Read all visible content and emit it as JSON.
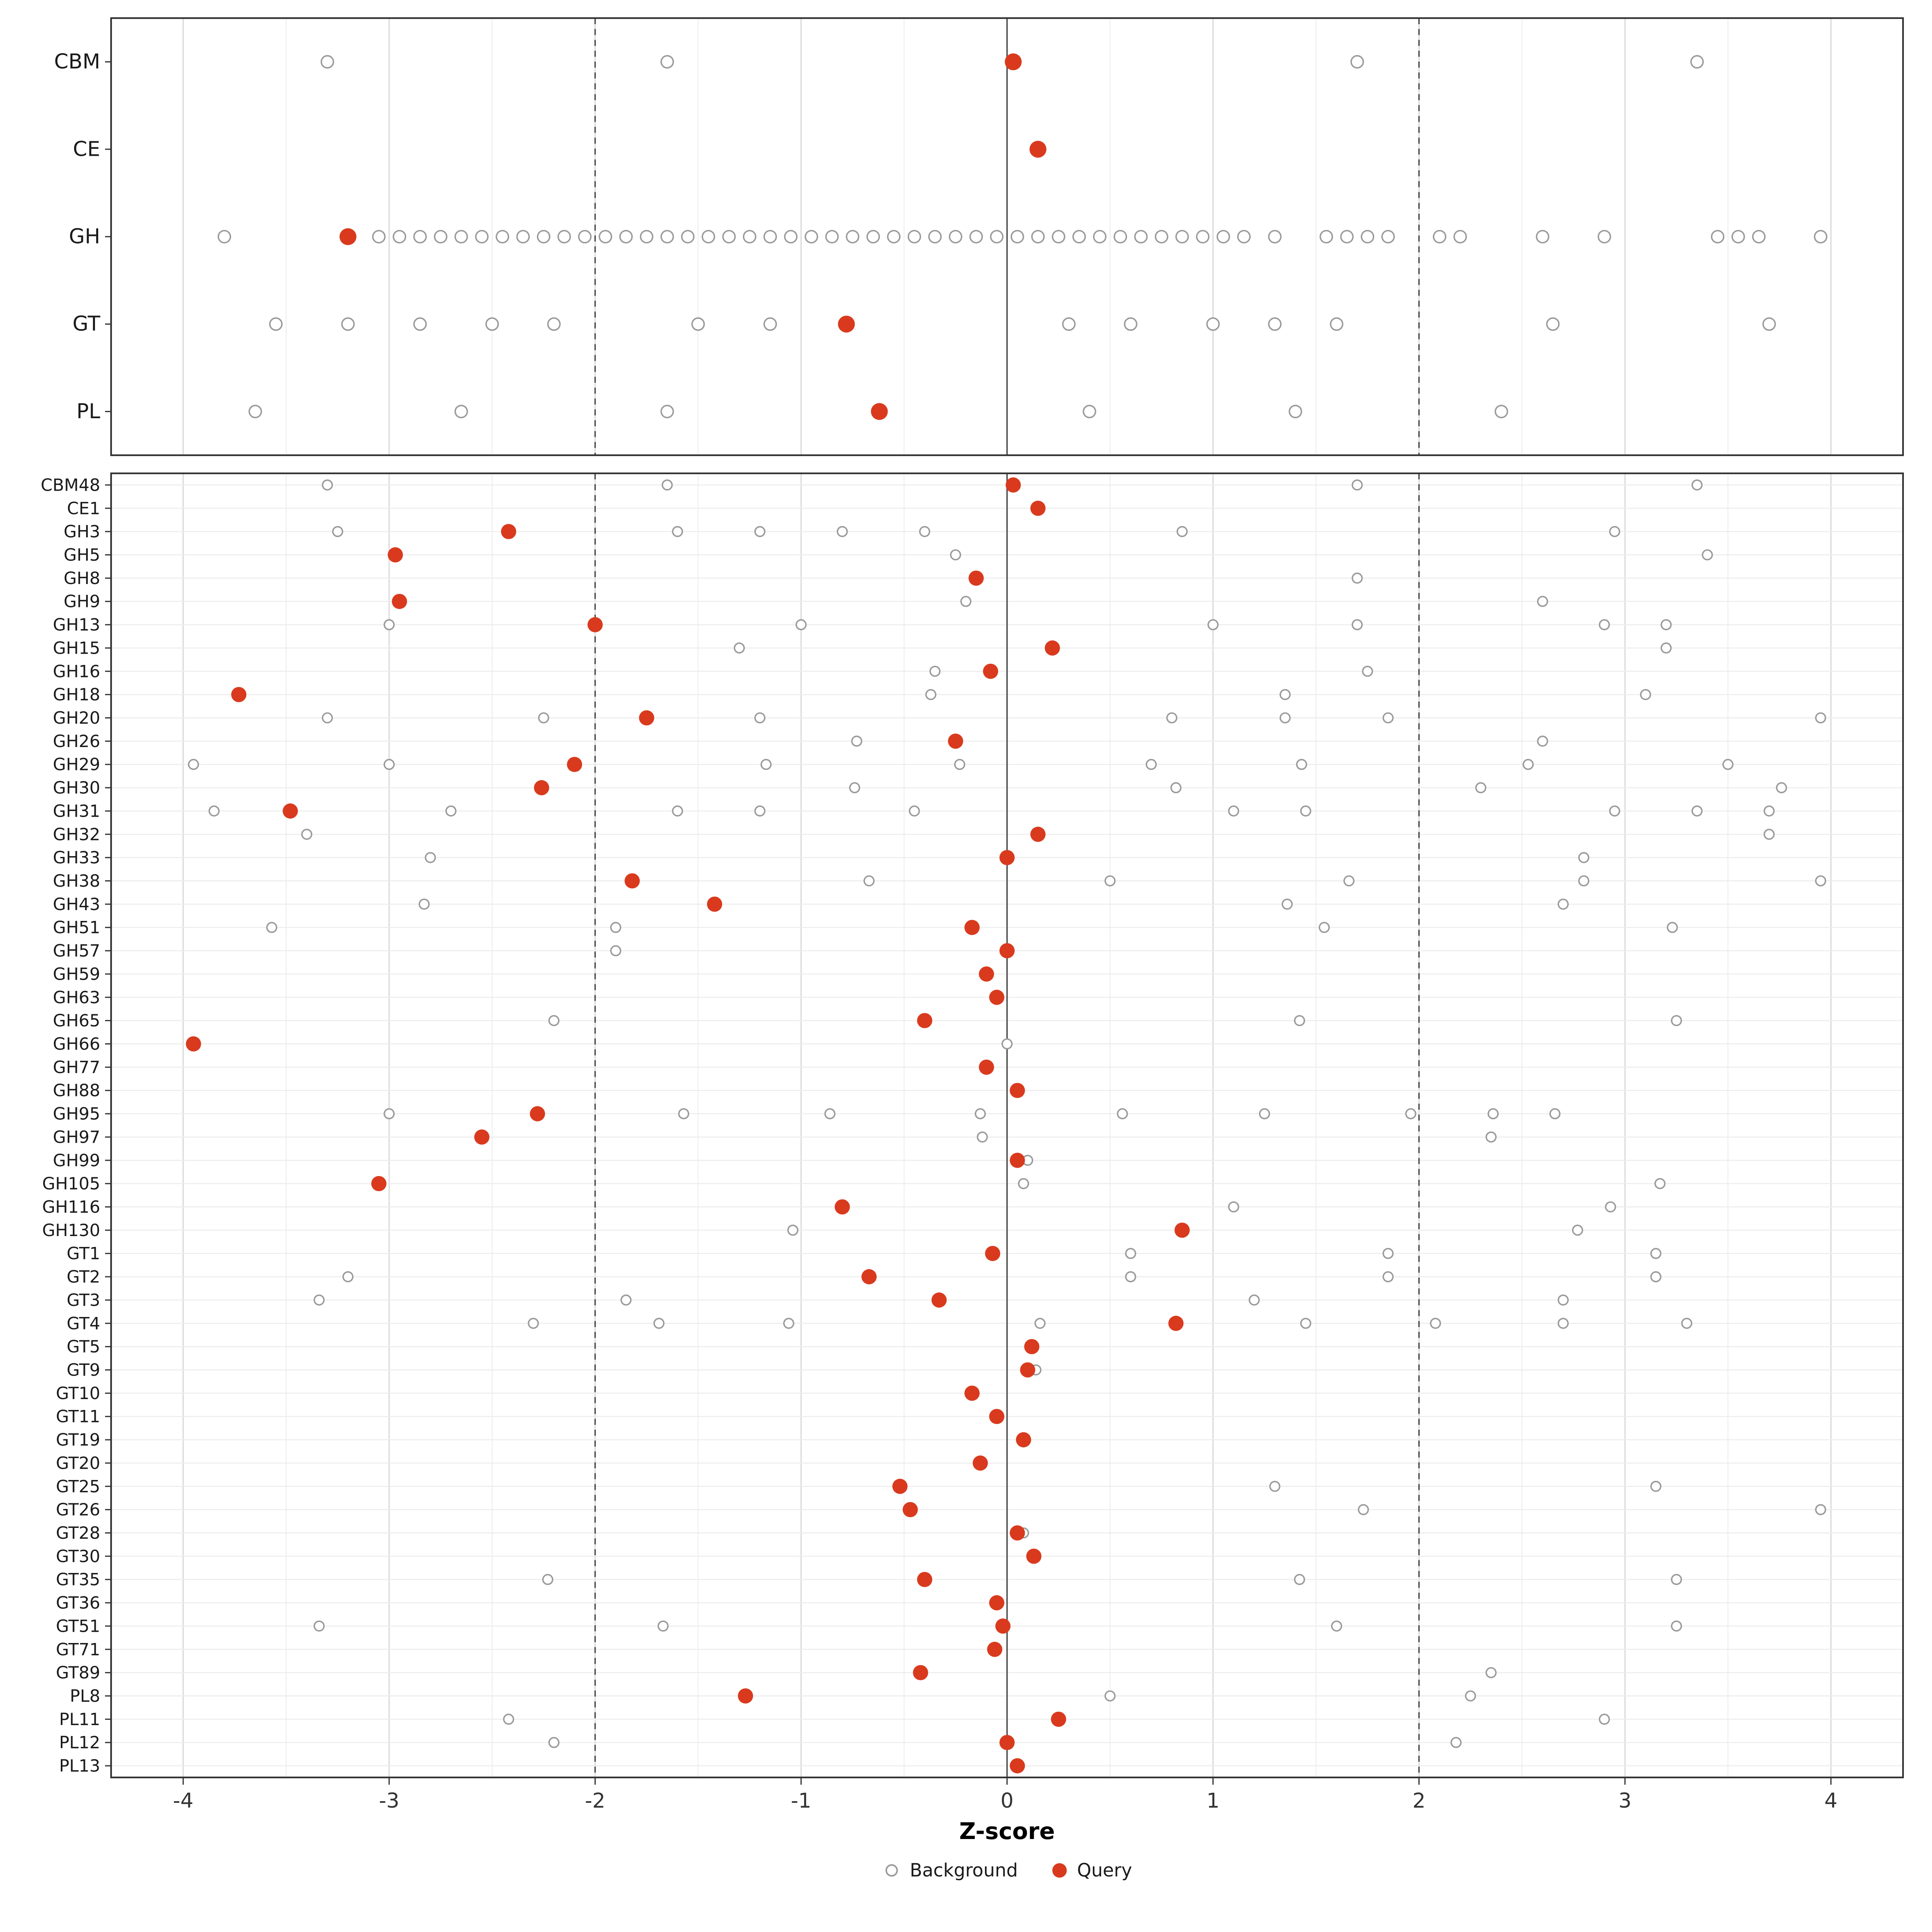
{
  "chart_data": {
    "type": "scatter",
    "title": "",
    "xlabel": "Z-score",
    "xlim": [
      -4.35,
      4.35
    ],
    "x_ticks": [
      -4,
      -3,
      -2,
      -1,
      0,
      1,
      2,
      3,
      4
    ],
    "reference_lines": {
      "solid": [
        0
      ],
      "dashed": [
        -2,
        2
      ]
    },
    "legend": [
      {
        "label": "Background",
        "type": "open"
      },
      {
        "label": "Query",
        "type": "filled"
      }
    ],
    "colors": {
      "background_stroke": "#9a9a9a",
      "query_fill": "#d93a1e",
      "panel_border": "#333333",
      "grid_major": "#dcdcdc",
      "grid_minor": "#efefef",
      "row_grid": "#ececec",
      "ref_line": "#444444"
    },
    "panels": [
      {
        "name": "family_summary",
        "rows": [
          {
            "label": "CBM",
            "query": 0.03,
            "background": [
              -3.3,
              -1.65,
              1.7,
              3.35
            ]
          },
          {
            "label": "CE",
            "query": 0.15,
            "background": []
          },
          {
            "label": "GH",
            "query": -3.2,
            "background": [
              -3.8,
              -3.05,
              -2.95,
              -2.85,
              -2.75,
              -2.65,
              -2.55,
              -2.45,
              -2.35,
              -2.25,
              -2.15,
              -2.05,
              -1.95,
              -1.85,
              -1.75,
              -1.65,
              -1.55,
              -1.45,
              -1.35,
              -1.25,
              -1.15,
              -1.05,
              -0.95,
              -0.85,
              -0.75,
              -0.65,
              -0.55,
              -0.45,
              -0.35,
              -0.25,
              -0.15,
              -0.05,
              0.05,
              0.15,
              0.25,
              0.35,
              0.45,
              0.55,
              0.65,
              0.75,
              0.85,
              0.95,
              1.05,
              1.15,
              1.3,
              1.55,
              1.65,
              1.75,
              1.85,
              2.1,
              2.2,
              2.6,
              2.9,
              3.45,
              3.55,
              3.65,
              3.95
            ]
          },
          {
            "label": "GT",
            "query": -0.78,
            "background": [
              -3.55,
              -3.2,
              -2.85,
              -2.5,
              -2.2,
              -1.5,
              -1.15,
              0.3,
              0.6,
              1.0,
              1.3,
              1.6,
              2.65,
              3.7
            ]
          },
          {
            "label": "PL",
            "query": -0.62,
            "background": [
              -3.65,
              -2.65,
              -1.65,
              0.4,
              1.4,
              2.4
            ]
          }
        ]
      },
      {
        "name": "subfamily_detail",
        "rows": [
          {
            "label": "CBM48",
            "query": 0.03,
            "background": [
              -3.3,
              -1.65,
              1.7,
              3.35
            ]
          },
          {
            "label": "CE1",
            "query": 0.15,
            "background": []
          },
          {
            "label": "GH3",
            "query": -2.42,
            "background": [
              -3.25,
              -1.6,
              -1.2,
              -0.8,
              -0.4,
              0.85,
              2.95
            ]
          },
          {
            "label": "GH5",
            "query": -2.97,
            "background": [
              -0.25,
              3.4
            ]
          },
          {
            "label": "GH8",
            "query": -0.15,
            "background": [
              1.7
            ]
          },
          {
            "label": "GH9",
            "query": -2.95,
            "background": [
              -0.2,
              2.6
            ]
          },
          {
            "label": "GH13",
            "query": -2.0,
            "background": [
              -3.0,
              -1.0,
              1.0,
              1.7,
              2.9,
              3.2
            ]
          },
          {
            "label": "GH15",
            "query": 0.22,
            "background": [
              -1.3,
              3.2
            ]
          },
          {
            "label": "GH16",
            "query": -0.08,
            "background": [
              -0.35,
              1.75
            ]
          },
          {
            "label": "GH18",
            "query": -3.73,
            "background": [
              -0.37,
              1.35,
              3.1
            ]
          },
          {
            "label": "GH20",
            "query": -1.75,
            "background": [
              -3.3,
              -2.25,
              -1.2,
              0.8,
              1.35,
              1.85,
              3.95
            ]
          },
          {
            "label": "GH26",
            "query": -0.25,
            "background": [
              -0.73,
              2.6
            ]
          },
          {
            "label": "GH29",
            "query": -2.1,
            "background": [
              -3.95,
              -3.0,
              -1.17,
              -0.23,
              0.7,
              1.43,
              2.53,
              3.5
            ]
          },
          {
            "label": "GH30",
            "query": -2.26,
            "background": [
              -0.74,
              0.82,
              2.3,
              3.76
            ]
          },
          {
            "label": "GH31",
            "query": -3.48,
            "background": [
              -3.85,
              -2.7,
              -1.6,
              -1.2,
              -0.45,
              1.1,
              1.45,
              2.95,
              3.35,
              3.7
            ]
          },
          {
            "label": "GH32",
            "query": 0.15,
            "background": [
              -3.4,
              3.7
            ]
          },
          {
            "label": "GH33",
            "query": 0.0,
            "background": [
              -2.8,
              2.8
            ]
          },
          {
            "label": "GH38",
            "query": -1.82,
            "background": [
              -0.67,
              0.5,
              1.66,
              2.8,
              3.95
            ]
          },
          {
            "label": "GH43",
            "query": -1.42,
            "background": [
              -2.83,
              1.36,
              2.7
            ]
          },
          {
            "label": "GH51",
            "query": -0.17,
            "background": [
              -3.57,
              -1.9,
              1.54,
              3.23
            ]
          },
          {
            "label": "GH57",
            "query": 0.0,
            "background": [
              -1.9
            ]
          },
          {
            "label": "GH59",
            "query": -0.1,
            "background": []
          },
          {
            "label": "GH63",
            "query": -0.05,
            "background": []
          },
          {
            "label": "GH65",
            "query": -0.4,
            "background": [
              -2.2,
              1.42,
              3.25
            ]
          },
          {
            "label": "GH66",
            "query": -3.95,
            "background": [
              0.0
            ]
          },
          {
            "label": "GH77",
            "query": -0.1,
            "background": []
          },
          {
            "label": "GH88",
            "query": 0.05,
            "background": []
          },
          {
            "label": "GH95",
            "query": -2.28,
            "background": [
              -3.0,
              -1.57,
              -0.86,
              -0.13,
              0.56,
              1.25,
              1.96,
              2.36,
              2.66
            ]
          },
          {
            "label": "GH97",
            "query": -2.55,
            "background": [
              -0.12,
              2.35
            ]
          },
          {
            "label": "GH99",
            "query": 0.05,
            "background": [
              0.1
            ]
          },
          {
            "label": "GH105",
            "query": -3.05,
            "background": [
              0.08,
              3.17
            ]
          },
          {
            "label": "GH116",
            "query": -0.8,
            "background": [
              1.1,
              2.93
            ]
          },
          {
            "label": "GH130",
            "query": 0.85,
            "background": [
              -1.04,
              2.77
            ]
          },
          {
            "label": "GT1",
            "query": -0.07,
            "background": [
              0.6,
              1.85,
              3.15
            ]
          },
          {
            "label": "GT2",
            "query": -0.67,
            "background": [
              -3.2,
              0.6,
              1.85,
              3.15
            ]
          },
          {
            "label": "GT3",
            "query": -0.33,
            "background": [
              -3.34,
              -1.85,
              1.2,
              2.7
            ]
          },
          {
            "label": "GT4",
            "query": 0.82,
            "background": [
              -2.3,
              -1.69,
              -1.06,
              0.16,
              1.45,
              2.08,
              2.7,
              3.3
            ]
          },
          {
            "label": "GT5",
            "query": 0.12,
            "background": []
          },
          {
            "label": "GT9",
            "query": 0.1,
            "background": [
              0.14
            ]
          },
          {
            "label": "GT10",
            "query": -0.17,
            "background": []
          },
          {
            "label": "GT11",
            "query": -0.05,
            "background": []
          },
          {
            "label": "GT19",
            "query": 0.08,
            "background": []
          },
          {
            "label": "GT20",
            "query": -0.13,
            "background": []
          },
          {
            "label": "GT25",
            "query": -0.52,
            "background": [
              1.3,
              3.15
            ]
          },
          {
            "label": "GT26",
            "query": -0.47,
            "background": [
              1.73,
              3.95
            ]
          },
          {
            "label": "GT28",
            "query": 0.05,
            "background": [
              0.08
            ]
          },
          {
            "label": "GT30",
            "query": 0.13,
            "background": []
          },
          {
            "label": "GT35",
            "query": -0.4,
            "background": [
              -2.23,
              1.42,
              3.25
            ]
          },
          {
            "label": "GT36",
            "query": -0.05,
            "background": []
          },
          {
            "label": "GT51",
            "query": -0.02,
            "background": [
              -3.34,
              -1.67,
              1.6,
              3.25
            ]
          },
          {
            "label": "GT71",
            "query": -0.06,
            "background": []
          },
          {
            "label": "GT89",
            "query": -0.42,
            "background": [
              2.35
            ]
          },
          {
            "label": "PL8",
            "query": -1.27,
            "background": [
              0.5,
              2.25
            ]
          },
          {
            "label": "PL11",
            "query": 0.25,
            "background": [
              -2.42,
              2.9
            ]
          },
          {
            "label": "PL12",
            "query": 0.0,
            "background": [
              -2.2,
              2.18
            ]
          },
          {
            "label": "PL13",
            "query": 0.05,
            "background": []
          }
        ]
      }
    ]
  }
}
